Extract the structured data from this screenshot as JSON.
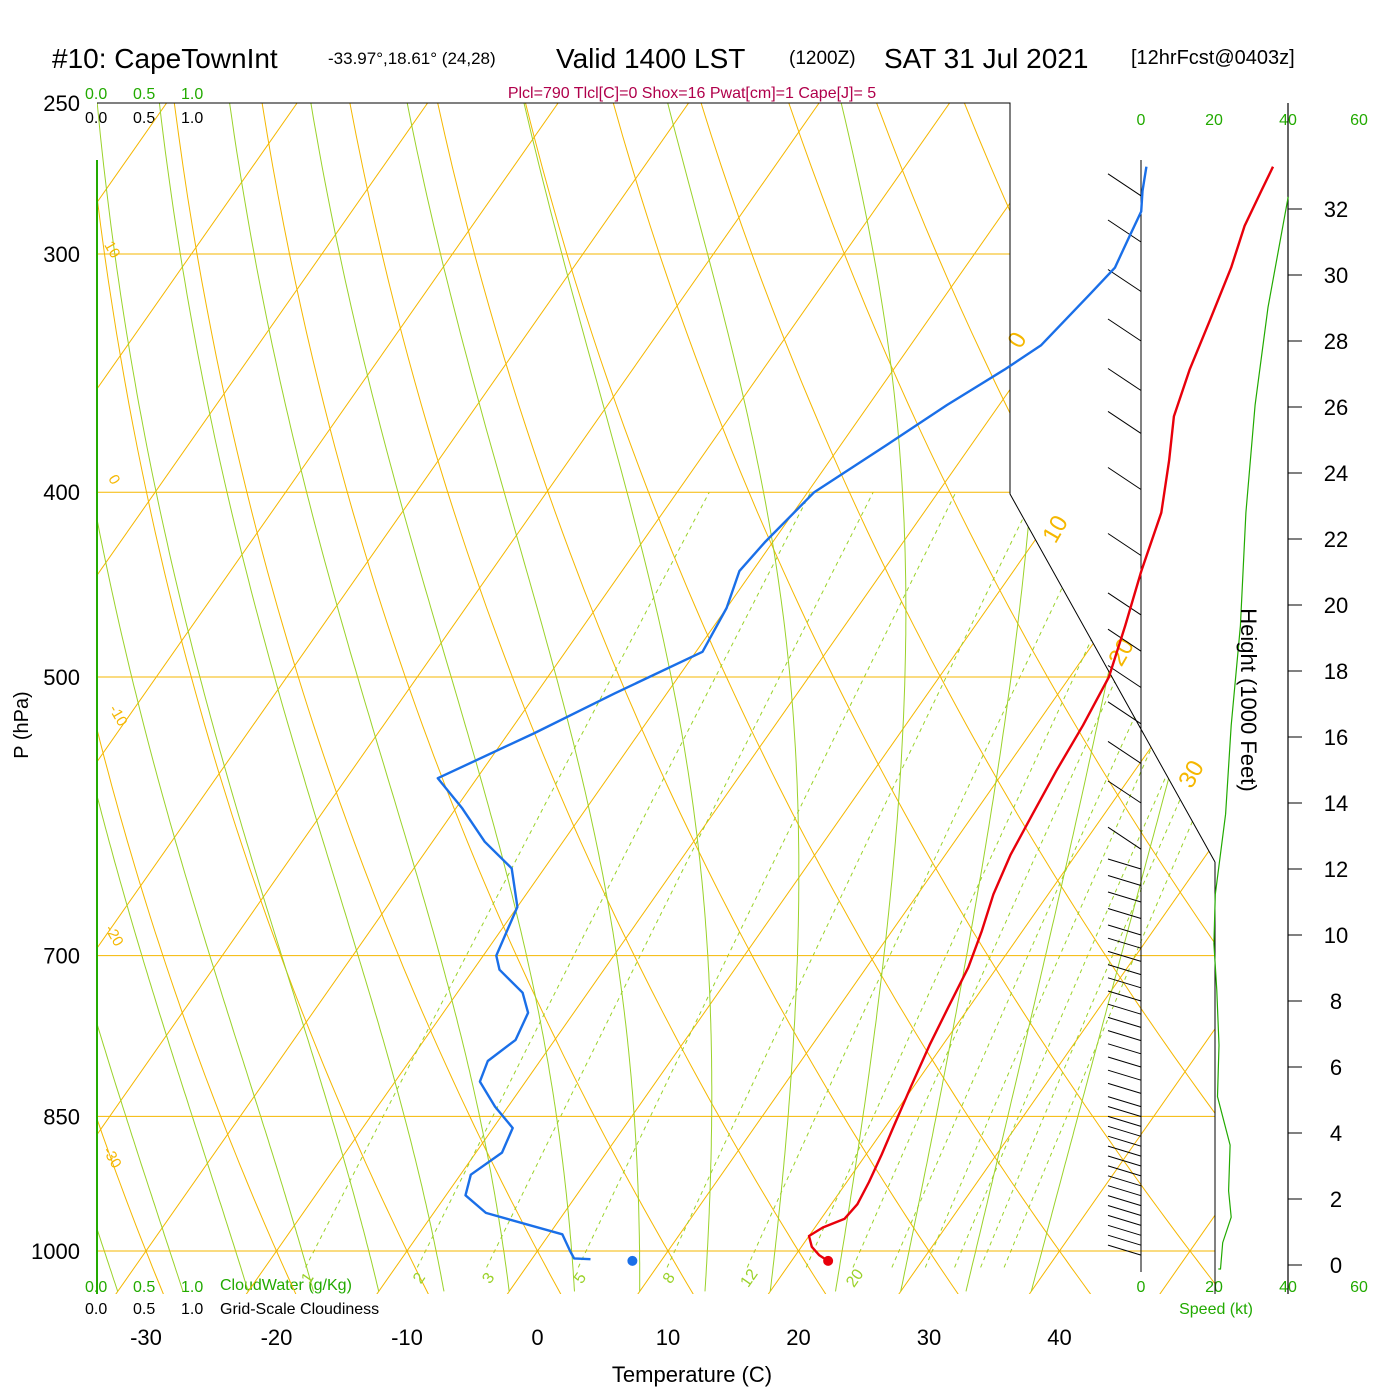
{
  "header": {
    "station": "#10: CapeTownInt",
    "coords": "-33.97°,18.61° (24,28)",
    "valid": "Valid 1400 LST",
    "utc": "(1200Z)",
    "date": "SAT 31 Jul 2021",
    "forecast": "[12hrFcst@0403z]",
    "indices": "Plcl=790 Tlcl[C]=0 Shox=16 Pwat[cm]=1 Cape[J]= 5"
  },
  "colors": {
    "temperature": "#e8000b",
    "dewpoint": "#1a6fe8",
    "isotherm": "#f5b700",
    "mixing_ratio": "#9bd22a",
    "green_text": "#22aa00",
    "indices_text": "#b0004b"
  },
  "cloud_scales": {
    "top_green": [
      "0.0",
      "0.5",
      "1.0"
    ],
    "top_black": [
      "0.0",
      "0.5",
      "1.0"
    ],
    "bottom_green": [
      "0.0",
      "0.5",
      "1.0"
    ],
    "bottom_black": [
      "0.0",
      "0.5",
      "1.0"
    ],
    "cloudwater_label": "CloudWater (g/Kg)",
    "cloudiness_label": "Grid-Scale Cloudiness"
  },
  "wind_speed_axis": {
    "top_ticks": [
      "0",
      "20",
      "40",
      "60"
    ],
    "bottom_ticks": [
      "0",
      "20",
      "40",
      "60"
    ],
    "label": "Speed (kt)"
  },
  "chart_data": {
    "type": "line",
    "xlabel": "Temperature (C)",
    "ylabel": "P (hPa)",
    "y2label": "Height (1000 Feet)",
    "x_ticks": [
      -30,
      -20,
      -10,
      0,
      10,
      20,
      30,
      40
    ],
    "y_ticks": [
      250,
      300,
      400,
      500,
      700,
      850,
      1000
    ],
    "y2_ticks": [
      0,
      2,
      4,
      6,
      8,
      10,
      12,
      14,
      16,
      18,
      20,
      22,
      24,
      26,
      28,
      30,
      32
    ],
    "isotherm_labels": [
      "10",
      "0",
      "-10",
      "-20",
      "-30",
      "0",
      "10",
      "20",
      "30"
    ],
    "mixing_ratio_labels": [
      "1",
      "2",
      "3",
      "5",
      "8",
      "12",
      "20"
    ],
    "series": [
      {
        "key": "temperature",
        "points": [
          [
            22.5,
            1010
          ],
          [
            21.8,
            1005
          ],
          [
            20.8,
            995
          ],
          [
            20.0,
            982
          ],
          [
            20.6,
            972
          ],
          [
            21.8,
            962
          ],
          [
            22.0,
            945
          ],
          [
            21.7,
            920
          ],
          [
            21.2,
            890
          ],
          [
            20.6,
            860
          ],
          [
            19.8,
            820
          ],
          [
            19.0,
            780
          ],
          [
            18.4,
            745
          ],
          [
            17.8,
            710
          ],
          [
            16.9,
            680
          ],
          [
            15.8,
            650
          ],
          [
            15.0,
            620
          ],
          [
            14.5,
            590
          ],
          [
            14.0,
            560
          ],
          [
            13.6,
            530
          ],
          [
            13.0,
            500
          ],
          [
            11.5,
            470
          ],
          [
            9.8,
            440
          ],
          [
            8.2,
            410
          ],
          [
            6.0,
            385
          ],
          [
            4.0,
            365
          ],
          [
            2.7,
            345
          ],
          [
            1.6,
            325
          ],
          [
            0.4,
            305
          ],
          [
            -0.8,
            290
          ],
          [
            -1.4,
            278
          ],
          [
            -1.8,
            270
          ]
        ]
      },
      {
        "key": "dewpoint",
        "points": [
          [
            4.5,
            1010
          ],
          [
            3.2,
            1009
          ],
          [
            2.5,
            1000
          ],
          [
            1.0,
            980
          ],
          [
            -6.0,
            955
          ],
          [
            -8.5,
            935
          ],
          [
            -9.2,
            912
          ],
          [
            -8.0,
            888
          ],
          [
            -8.5,
            862
          ],
          [
            -11.0,
            840
          ],
          [
            -13.5,
            815
          ],
          [
            -14.0,
            795
          ],
          [
            -13.0,
            775
          ],
          [
            -13.5,
            750
          ],
          [
            -15.0,
            732
          ],
          [
            -18.0,
            712
          ],
          [
            -19.0,
            700
          ],
          [
            -20.0,
            660
          ],
          [
            -22.5,
            630
          ],
          [
            -26.0,
            610
          ],
          [
            -29.5,
            586
          ],
          [
            -33.0,
            565
          ],
          [
            -28.0,
            535
          ],
          [
            -24.0,
            510
          ],
          [
            -19.5,
            485
          ],
          [
            -20.0,
            460
          ],
          [
            -21.0,
            440
          ],
          [
            -20.6,
            425
          ],
          [
            -19.5,
            400
          ],
          [
            -16.5,
            378
          ],
          [
            -14.0,
            360
          ],
          [
            -11.5,
            345
          ],
          [
            -10.0,
            335
          ],
          [
            -9.0,
            315
          ],
          [
            -8.5,
            305
          ],
          [
            -9.0,
            295
          ],
          [
            -9.5,
            285
          ],
          [
            -10.5,
            278
          ],
          [
            -11.5,
            270
          ]
        ]
      }
    ],
    "surface_points": [
      {
        "key": "temperature",
        "t": 22.8,
        "p": 1012
      },
      {
        "key": "dewpoint",
        "t": 7.8,
        "p": 1012
      }
    ],
    "height_profile": [
      [
        1020,
        1
      ],
      [
        1010,
        1.6
      ],
      [
        990,
        2.2
      ],
      [
        960,
        4.5
      ],
      [
        930,
        3.8
      ],
      [
        880,
        4.2
      ],
      [
        830,
        0.8
      ],
      [
        780,
        1.2
      ],
      [
        730,
        0.6
      ],
      [
        690,
        -0.2
      ],
      [
        650,
        0.2
      ],
      [
        590,
        3
      ],
      [
        530,
        4.5
      ],
      [
        470,
        7
      ],
      [
        410,
        8.5
      ],
      [
        360,
        11
      ],
      [
        320,
        14.5
      ],
      [
        280,
        20
      ]
    ],
    "wind_barbs": {
      "height_marks_kft": [
        0.3,
        0.6,
        0.9,
        1.2,
        1.5,
        1.8,
        2.1,
        2.4,
        2.7,
        3.0,
        3.3,
        3.6,
        3.9,
        4.2,
        4.5,
        4.8,
        5.2,
        5.6,
        6.0,
        6.4,
        6.8,
        7.2,
        7.6,
        8.0,
        8.4,
        8.8,
        9.2,
        9.6,
        10.0,
        10.5,
        11.0,
        11.5,
        12.0,
        12.6,
        14.0,
        15.2,
        16.4,
        17.5,
        18.6,
        19.7,
        21.5,
        23.5,
        25.2,
        26.5,
        28.0,
        29.5,
        31.0,
        32.4
      ]
    }
  }
}
